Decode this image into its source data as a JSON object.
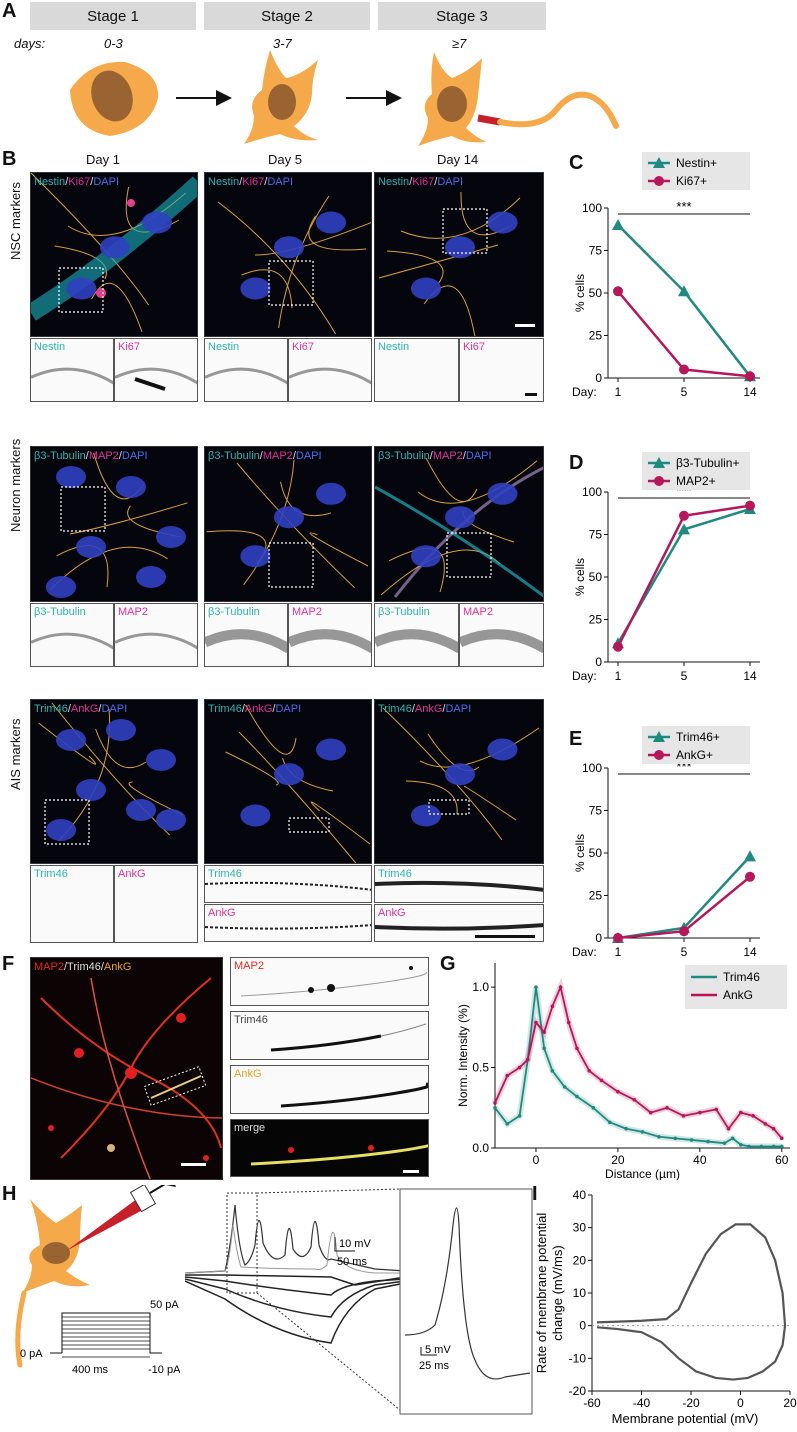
{
  "panels": {
    "A": "A",
    "B": "B",
    "C": "C",
    "D": "D",
    "E": "E",
    "F": "F",
    "G": "G",
    "H": "H",
    "I": "I"
  },
  "panelA": {
    "stages": [
      "Stage 1",
      "Stage 2",
      "Stage 3"
    ],
    "days_label": "days:",
    "days": [
      "0-3",
      "3-7",
      "≥7"
    ]
  },
  "panelB": {
    "day_headers": [
      "Day 1",
      "Day 5",
      "Day 14"
    ],
    "row_labels": [
      "NSC markers",
      "Neuron markers",
      "AIS markers"
    ],
    "rows": [
      {
        "m1": "Nestin",
        "m2": "Ki67",
        "dapi": "DAPI"
      },
      {
        "m1": "β3-Tubulin",
        "m2": "MAP2",
        "dapi": "DAPI"
      },
      {
        "m1": "Trim46",
        "m2": "AnkG",
        "dapi": "DAPI"
      }
    ],
    "sep": "/"
  },
  "chart_data": [
    {
      "id": "C",
      "type": "line",
      "categories": [
        "1",
        "5",
        "14"
      ],
      "xlabel": "Day:",
      "ylabel": "% cells",
      "ylim": [
        0,
        100
      ],
      "yticks": [
        0,
        25,
        50,
        75,
        100
      ],
      "significance": "***",
      "series": [
        {
          "name": "Nestin+",
          "color": "#1f8a80",
          "marker": "triangle",
          "values": [
            90,
            51,
            1
          ]
        },
        {
          "name": "Ki67+",
          "color": "#b5175a",
          "marker": "circle",
          "values": [
            51,
            5,
            1
          ]
        }
      ]
    },
    {
      "id": "D",
      "type": "line",
      "categories": [
        "1",
        "5",
        "14"
      ],
      "xlabel": "Day:",
      "ylabel": "% cells",
      "ylim": [
        0,
        100
      ],
      "yticks": [
        0,
        25,
        50,
        75,
        100
      ],
      "significance": "***",
      "series": [
        {
          "name": "β3-Tubulin+",
          "color": "#1f8a80",
          "marker": "triangle",
          "values": [
            11,
            78,
            90
          ]
        },
        {
          "name": "MAP2+",
          "color": "#b5175a",
          "marker": "circle",
          "values": [
            9,
            86,
            92
          ]
        }
      ]
    },
    {
      "id": "E",
      "type": "line",
      "categories": [
        "1",
        "5",
        "14"
      ],
      "xlabel": "Day:",
      "ylabel": "% cells",
      "ylim": [
        0,
        100
      ],
      "yticks": [
        0,
        25,
        50,
        75,
        100
      ],
      "significance": "***",
      "series": [
        {
          "name": "Trim46+",
          "color": "#1f8a80",
          "marker": "triangle",
          "values": [
            0,
            6,
            48
          ]
        },
        {
          "name": "AnkG+",
          "color": "#b5175a",
          "marker": "circle",
          "values": [
            0,
            4,
            36
          ]
        }
      ]
    },
    {
      "id": "G",
      "type": "line",
      "xlabel": "Distance (µm)",
      "ylabel": "Norm. Intensity (%)",
      "xlim": [
        -10,
        62
      ],
      "ylim": [
        0,
        1.15
      ],
      "xticks": [
        0,
        20,
        40,
        60
      ],
      "yticks": [
        0.0,
        0.5,
        1.0
      ],
      "series": [
        {
          "name": "Trim46",
          "color": "#1f8a80",
          "x": [
            -10,
            -7,
            -4,
            -2,
            0,
            2,
            4,
            7,
            10,
            14,
            18,
            22,
            26,
            30,
            34,
            38,
            42,
            46,
            48,
            50,
            52,
            55,
            58,
            60
          ],
          "y": [
            0.25,
            0.15,
            0.2,
            0.55,
            1.0,
            0.62,
            0.48,
            0.38,
            0.32,
            0.25,
            0.16,
            0.12,
            0.1,
            0.07,
            0.06,
            0.05,
            0.04,
            0.03,
            0.06,
            0.02,
            0.01,
            0.01,
            0.01,
            0.01
          ]
        },
        {
          "name": "AnkG",
          "color": "#b5175a",
          "x": [
            -10,
            -7,
            -4,
            -2,
            0,
            2,
            4,
            6,
            8,
            10,
            13,
            16,
            20,
            24,
            28,
            32,
            36,
            40,
            44,
            47,
            50,
            53,
            56,
            58,
            60
          ],
          "y": [
            0.28,
            0.45,
            0.5,
            0.55,
            0.78,
            0.72,
            0.88,
            1.0,
            0.78,
            0.62,
            0.48,
            0.42,
            0.35,
            0.3,
            0.22,
            0.25,
            0.2,
            0.22,
            0.24,
            0.12,
            0.22,
            0.2,
            0.15,
            0.12,
            0.06
          ]
        }
      ]
    },
    {
      "id": "I",
      "type": "line",
      "xlabel": "Membrane potential (mV)",
      "ylabel": "Rate of membrane potential change (mV/ms)",
      "xlim": [
        -60,
        20
      ],
      "ylim": [
        -20,
        40
      ],
      "xticks": [
        -60,
        -40,
        -20,
        0,
        20
      ],
      "yticks": [
        -20,
        -10,
        0,
        10,
        20,
        30,
        40
      ],
      "series": [
        {
          "name": "",
          "color": "#555555",
          "x": [
            -58,
            -40,
            -30,
            -25,
            -20,
            -14,
            -8,
            -2,
            4,
            10,
            14,
            17,
            18,
            17,
            14,
            9,
            3,
            -3,
            -10,
            -18,
            -25,
            -32,
            -40,
            -50,
            -58
          ],
          "y": [
            1,
            1.5,
            2,
            5,
            13,
            22,
            28,
            31,
            31,
            27,
            20,
            10,
            0,
            -6,
            -11,
            -14,
            -16,
            -16.5,
            -16,
            -14,
            -10,
            -5,
            -2,
            -1,
            -0.5
          ]
        }
      ]
    }
  ],
  "panelF": {
    "title_parts": [
      "MAP2",
      "/Trim46/",
      "AnkG"
    ],
    "insets": [
      "MAP2",
      "Trim46",
      "AnkG",
      "merge"
    ]
  },
  "panelH": {
    "scale1_v": "10 mV",
    "scale1_t": "50 ms",
    "scale2_v": "5 mV",
    "scale2_t": "25 ms",
    "protocol_top": "50 pA",
    "protocol_left": "0 pA",
    "protocol_dur": "400 ms",
    "protocol_bottom": "-10 pA"
  }
}
